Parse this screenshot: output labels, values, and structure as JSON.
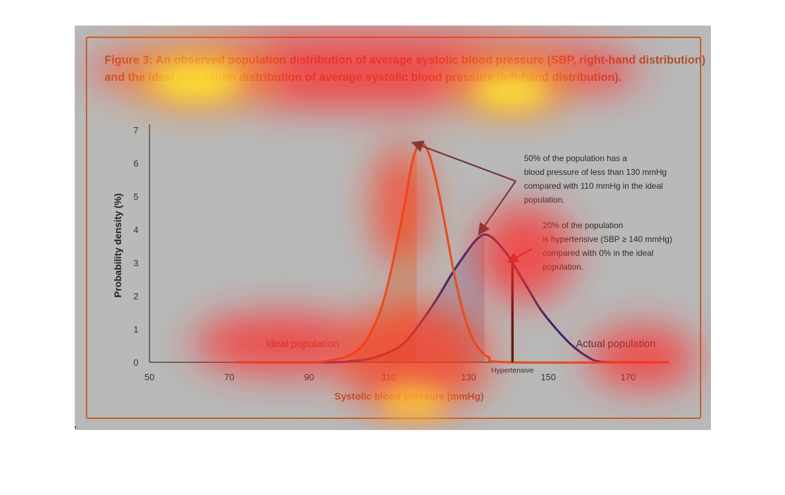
{
  "figure": {
    "caption_line1": "Figure 3: An observed population distribution of average systolic blood pressure (SBP, right-hand distribution)",
    "caption_line2": "and the ideal population distribution of average systolic blood pressure (left-hand distribution)."
  },
  "colors": {
    "ideal_curve": "#e0521e",
    "actual_curve": "#3a2a68",
    "hypertensive_line": "#5a1414",
    "arrow": "#6b3a3a",
    "frame": "#c0632c",
    "caption": "#b4502a"
  },
  "chart_data": {
    "type": "line",
    "title": "",
    "xlabel": "Systolic blood pressure (mmHg)",
    "ylabel": "Probability density (%)",
    "xlim": [
      50,
      180
    ],
    "ylim": [
      0,
      7
    ],
    "x_ticks": [
      50,
      70,
      90,
      110,
      130,
      150,
      170
    ],
    "y_ticks": [
      0,
      1,
      2,
      3,
      4,
      5,
      6,
      7
    ],
    "series": [
      {
        "name": "Ideal population",
        "x": [
          72,
          90,
          95,
          100,
          104,
          108,
          111,
          114,
          116,
          118,
          120,
          122,
          124,
          126,
          128,
          130,
          132,
          135,
          140,
          180
        ],
        "y": [
          0,
          0,
          0.05,
          0.2,
          0.6,
          1.6,
          3.0,
          4.8,
          6.1,
          6.6,
          6.3,
          5.4,
          4.2,
          2.9,
          1.8,
          1.0,
          0.5,
          0.15,
          0,
          0
        ]
      },
      {
        "name": "Actual population",
        "x": [
          72,
          95,
          100,
          105,
          110,
          114,
          118,
          122,
          126,
          130,
          132,
          134,
          136,
          138,
          140,
          142,
          145,
          148,
          152,
          156,
          160,
          163,
          170,
          180
        ],
        "y": [
          0,
          0,
          0.03,
          0.1,
          0.3,
          0.6,
          1.2,
          1.9,
          2.7,
          3.4,
          3.7,
          3.85,
          3.75,
          3.5,
          3.2,
          2.8,
          2.2,
          1.6,
          1.0,
          0.5,
          0.15,
          0.02,
          0,
          0
        ]
      }
    ],
    "shaded_regions": [
      {
        "series": "Ideal population",
        "x_from": 100,
        "x_to": 117
      },
      {
        "series": "Actual population",
        "x_from": 105,
        "x_to": 134
      }
    ],
    "hypertensive_threshold": {
      "x": 141,
      "y": 3.0,
      "label": "Hypertensive"
    },
    "annotations": {
      "median_note": [
        "50% of the population has a",
        "blood pressure of less than 130 mmHg",
        "compared with 110 mmHg in the ideal",
        "population."
      ],
      "hypertensive_note": [
        "20% of the population",
        "is hypertensive (SBP  ≥ 140 mmHg)",
        "compared with 0% in the ideal",
        "population."
      ]
    },
    "series_labels": {
      "ideal": "Ideal population",
      "actual": "Actual population"
    },
    "grid": false,
    "legend": "none"
  }
}
